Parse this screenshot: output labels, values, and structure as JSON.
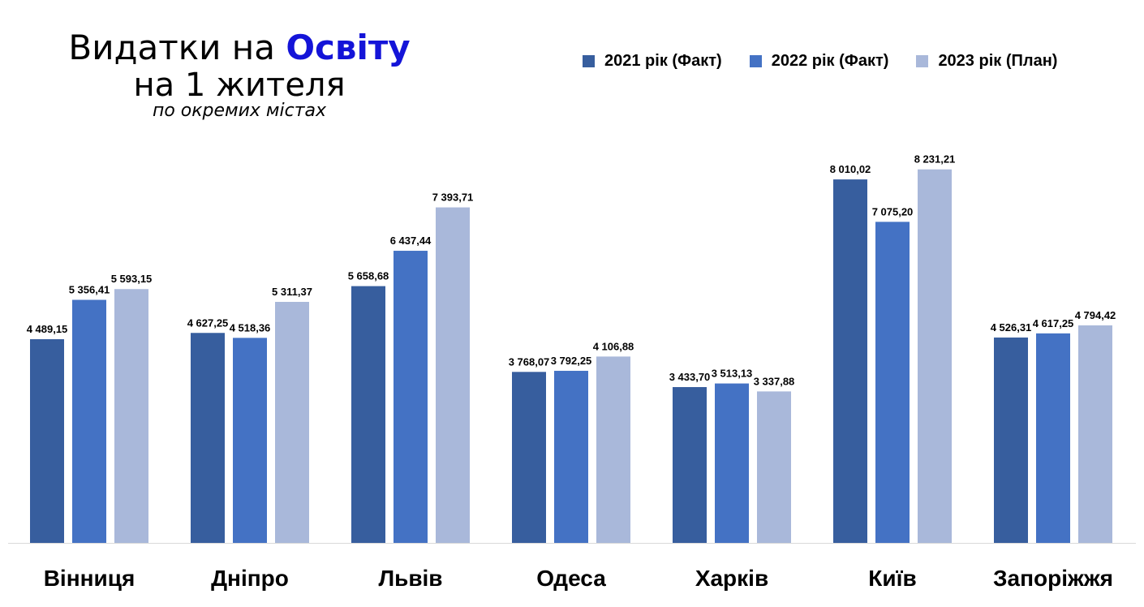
{
  "chart_data": {
    "type": "bar",
    "title": "Видатки на Освіту",
    "title_highlight": "Освіту",
    "title_prefix": "Видатки на ",
    "title_line2": "на 1 жителя",
    "subtitle": "по окремих містах",
    "xlabel": "",
    "ylabel": "",
    "ylim": [
      0,
      12000
    ],
    "grid": false,
    "legend_position": "top-right",
    "categories": [
      "Вінниця",
      "Дніпро",
      "Львів",
      "Одеса",
      "Харків",
      "Київ",
      "Запоріжжя"
    ],
    "series": [
      {
        "name": "2021 рік (Факт)",
        "color": "#375E9E",
        "values": [
          4489.15,
          4627.25,
          5658.68,
          3768.07,
          3433.7,
          8010.02,
          4526.31
        ],
        "labels": [
          "4 489,15",
          "4 627,25",
          "5 658,68",
          "3 768,07",
          "3 433,70",
          "8 010,02",
          "4 526,31"
        ]
      },
      {
        "name": "2022 рік (Факт)",
        "color": "#4472C4",
        "values": [
          5356.41,
          4518.36,
          6437.44,
          3792.25,
          3513.13,
          7075.2,
          4617.25
        ],
        "labels": [
          "5 356,41",
          "4 518,36",
          "6 437,44",
          "3 792,25",
          "3 513,13",
          "7 075,20",
          "4 617,25"
        ]
      },
      {
        "name": "2023 рік (План)",
        "color": "#A9B8DA",
        "values": [
          5593.15,
          5311.37,
          7393.71,
          4106.88,
          3337.88,
          8231.21,
          4794.42
        ],
        "labels": [
          "5 593,15",
          "5 311,37",
          "7 393,71",
          "4 106,88",
          "3 337,88",
          "8 231,21",
          "4 794,42"
        ]
      }
    ]
  }
}
